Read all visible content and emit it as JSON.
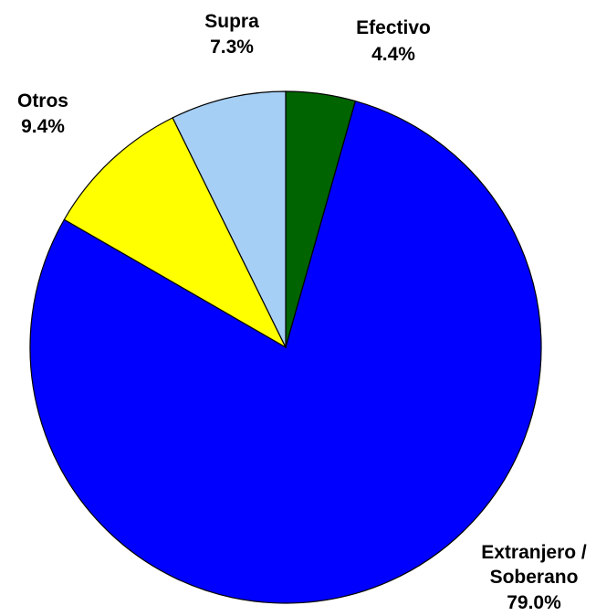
{
  "chart_data": {
    "type": "pie",
    "title": "",
    "start_angle_deg": 0,
    "direction": "clockwise",
    "slices": [
      {
        "label": "Efectivo",
        "value": 4.4,
        "display": "4.4%",
        "color": "#006400"
      },
      {
        "label": "Extranjero / Soberano",
        "label_lines": [
          "Extranjero /",
          "Soberano"
        ],
        "value": 79.0,
        "display": "79.0%",
        "color": "#0000ff"
      },
      {
        "label": "Otros",
        "value": 9.4,
        "display": "9.4%",
        "color": "#ffff00"
      },
      {
        "label": "Supra",
        "value": 7.3,
        "display": "7.3%",
        "color": "#a6cff5"
      }
    ],
    "legend": "none"
  }
}
